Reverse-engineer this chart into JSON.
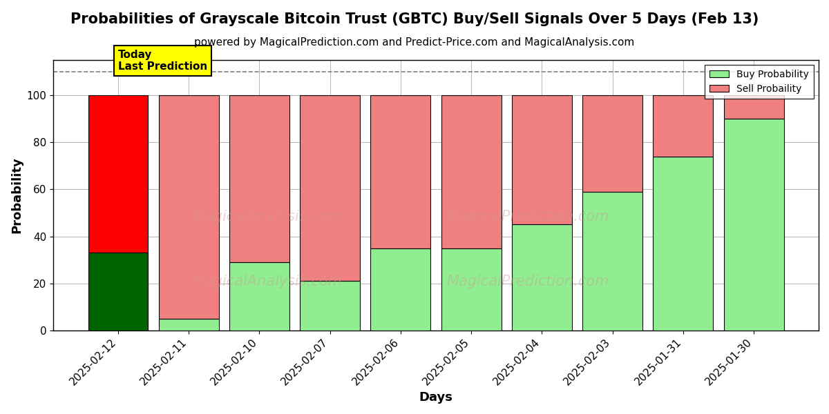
{
  "title": "Probabilities of Grayscale Bitcoin Trust (GBTC) Buy/Sell Signals Over 5 Days (Feb 13)",
  "subtitle": "powered by MagicalPrediction.com and Predict-Price.com and MagicalAnalysis.com",
  "xlabel": "Days",
  "ylabel": "Probability",
  "categories": [
    "2025-02-12",
    "2025-02-11",
    "2025-02-10",
    "2025-02-07",
    "2025-02-06",
    "2025-02-05",
    "2025-02-04",
    "2025-02-03",
    "2025-01-31",
    "2025-01-30"
  ],
  "buy_values": [
    33,
    5,
    29,
    21,
    35,
    35,
    45,
    59,
    74,
    90
  ],
  "sell_values": [
    67,
    95,
    71,
    79,
    65,
    65,
    55,
    41,
    26,
    10
  ],
  "today_buy_color": "#006400",
  "today_sell_color": "#ff0000",
  "buy_color": "#90ee90",
  "sell_color": "#f08080",
  "bar_edge_color": "#000000",
  "today_label_bg": "#ffff00",
  "today_label_text": "Today\nLast Prediction",
  "legend_buy": "Buy Probability",
  "legend_sell": "Sell Probaility",
  "ylim": [
    0,
    115
  ],
  "dashed_line_y": 110,
  "title_fontsize": 15,
  "subtitle_fontsize": 11,
  "axis_label_fontsize": 13,
  "tick_fontsize": 11,
  "background_color": "#ffffff",
  "grid_color": "#aaaaaa",
  "bar_width": 0.85
}
